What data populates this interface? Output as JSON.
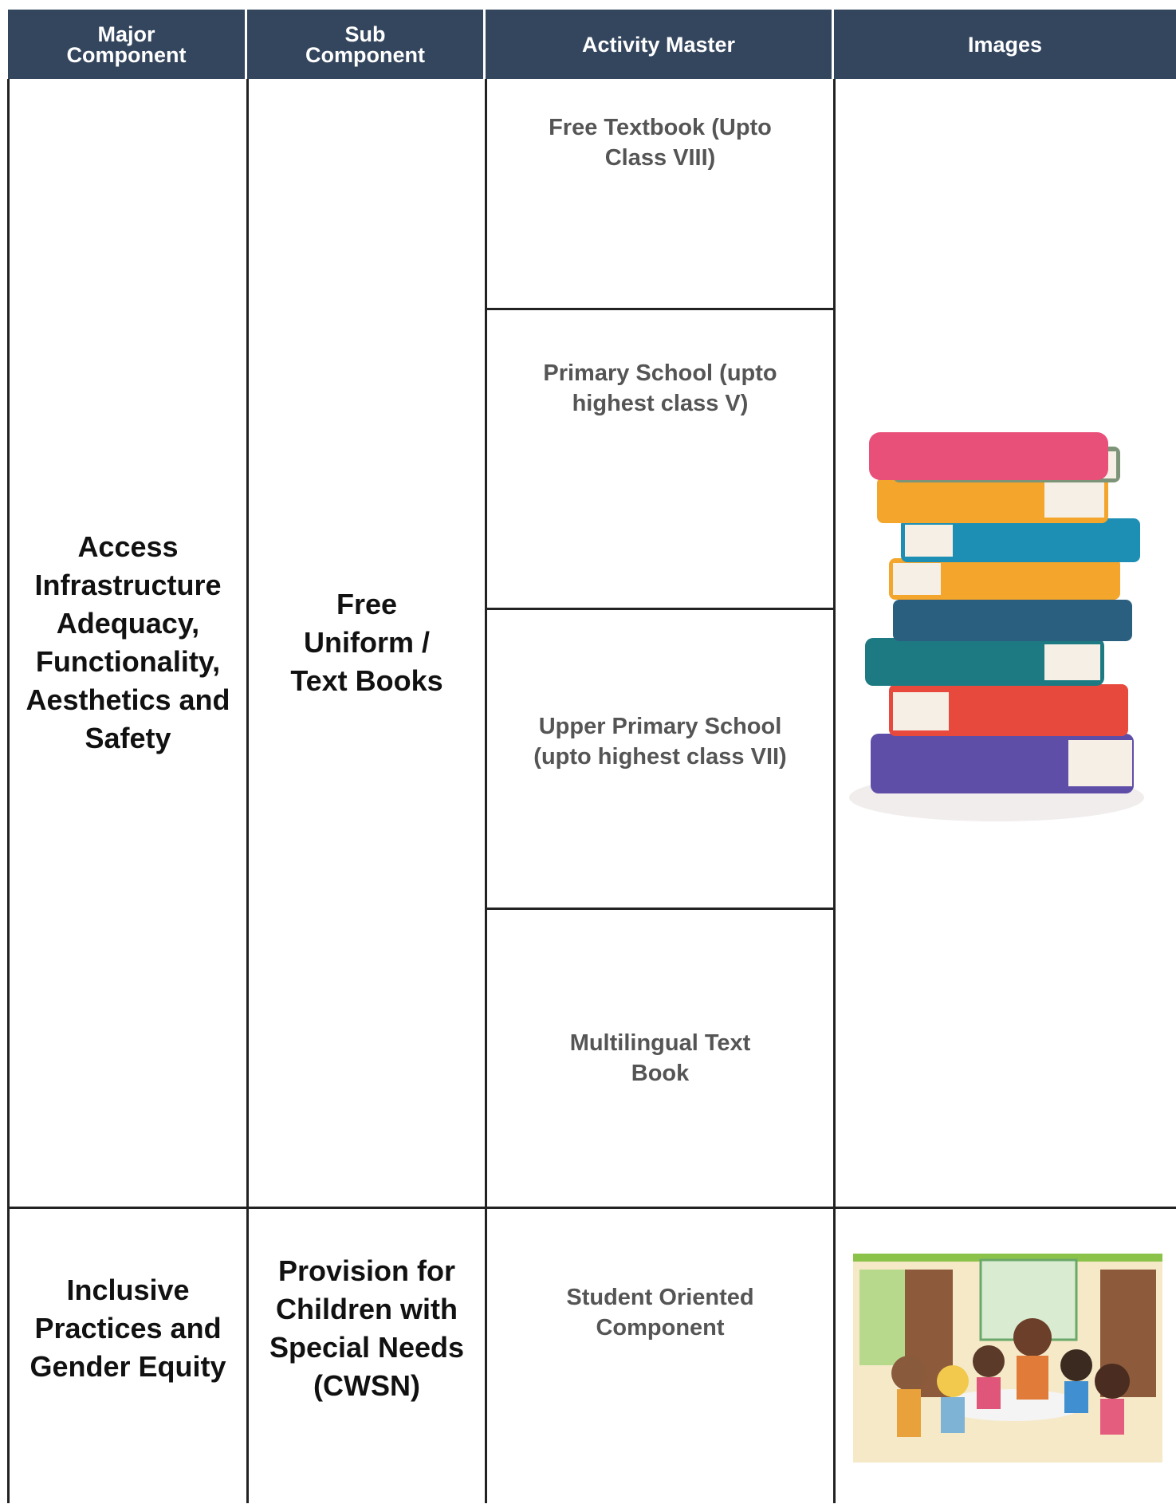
{
  "table": {
    "header": [
      "Major Component",
      "Sub Component",
      "Activity Master",
      "Images"
    ],
    "rows": [
      {
        "major": "Access Infrastructure Adequacy, Functionality, Aesthetics and Safety",
        "sub": "Free Uniform / Text Books",
        "activities": [
          "Free Textbook (Upto Class VIII)",
          "Primary School (upto highest class V)",
          "Upper Primary School (upto highest class VII)",
          "Multilingual Text Book"
        ]
      },
      {
        "major": "Inclusive Practices and Gender Equity",
        "sub": "Provision for Children with Special Needs (CWSN)",
        "activities": [
          "Student Oriented Component"
        ]
      }
    ]
  }
}
